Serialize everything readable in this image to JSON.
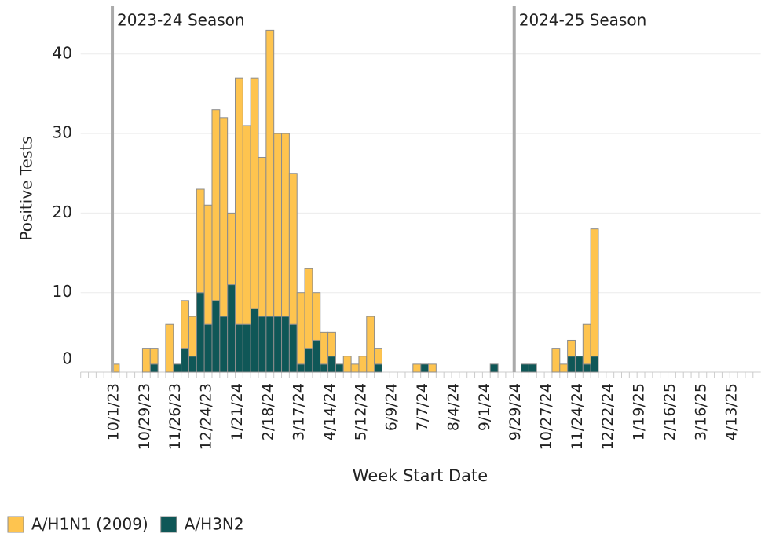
{
  "chart_data": {
    "type": "bar",
    "stacked": true,
    "grid": true,
    "y_label": "Positive Tests",
    "x_label": "Week Start Date",
    "categories": [
      null,
      null,
      null,
      null,
      "10/1/23",
      null,
      null,
      null,
      "10/29/23",
      null,
      null,
      null,
      "11/26/23",
      null,
      null,
      null,
      "12/24/23",
      null,
      null,
      null,
      "1/21/24",
      null,
      null,
      null,
      "2/18/24",
      null,
      null,
      null,
      "3/17/24",
      null,
      null,
      null,
      "4/14/24",
      null,
      null,
      null,
      "5/12/24",
      null,
      null,
      null,
      "6/9/24",
      null,
      null,
      null,
      "7/7/24",
      null,
      null,
      null,
      "8/4/24",
      null,
      null,
      null,
      "9/1/24",
      null,
      null,
      null,
      "9/29/24",
      null,
      null,
      null,
      "10/27/24",
      null,
      null,
      null,
      "11/24/24",
      null,
      null,
      null,
      "12/22/24",
      null,
      null,
      null,
      "1/19/25",
      null,
      null,
      null,
      "2/16/25",
      null,
      null,
      null,
      "3/16/25",
      null,
      null,
      null,
      "4/13/25",
      null,
      null,
      null
    ],
    "series": [
      {
        "name": "A/H1N1 (2009)",
        "color": "#fec44f",
        "values": [
          0,
          0,
          0,
          0,
          1,
          0,
          0,
          0,
          3,
          2,
          0,
          6,
          0,
          6,
          5,
          13,
          15,
          24,
          25,
          9,
          31,
          25,
          29,
          20,
          36,
          23,
          23,
          19,
          9,
          10,
          6,
          4,
          3,
          0,
          2,
          1,
          2,
          7,
          2,
          0,
          0,
          0,
          0,
          1,
          0,
          1,
          0,
          0,
          0,
          0,
          0,
          0,
          0,
          0,
          0,
          0,
          0,
          0,
          0,
          0,
          0,
          3,
          1,
          2,
          0,
          5,
          16,
          0,
          0,
          0,
          0,
          0,
          0,
          0,
          0,
          0,
          0,
          0,
          0,
          0,
          0,
          0,
          0,
          0,
          0,
          0,
          0,
          0
        ]
      },
      {
        "name": "A/H3N2",
        "color": "#0f5757",
        "values": [
          0,
          0,
          0,
          0,
          0,
          0,
          0,
          0,
          0,
          1,
          0,
          0,
          1,
          3,
          2,
          10,
          6,
          9,
          7,
          11,
          6,
          6,
          8,
          7,
          7,
          7,
          7,
          6,
          1,
          3,
          4,
          1,
          2,
          1,
          0,
          0,
          0,
          0,
          1,
          0,
          0,
          0,
          0,
          0,
          1,
          0,
          0,
          0,
          0,
          0,
          0,
          0,
          0,
          1,
          0,
          0,
          0,
          1,
          1,
          0,
          0,
          0,
          0,
          2,
          2,
          1,
          2,
          0,
          0,
          0,
          0,
          0,
          0,
          0,
          0,
          0,
          0,
          0,
          0,
          0,
          0,
          0,
          0,
          0,
          0,
          0,
          0,
          0
        ]
      }
    ],
    "ylim": [
      0,
      46
    ],
    "yticks": [
      0,
      10,
      20,
      30,
      40
    ],
    "annotations": [
      {
        "x": "10/1/23",
        "text": "2023-24 Season"
      },
      {
        "x": "9/29/24",
        "text": "2024-25 Season"
      }
    ],
    "legend": "bottom-left"
  }
}
